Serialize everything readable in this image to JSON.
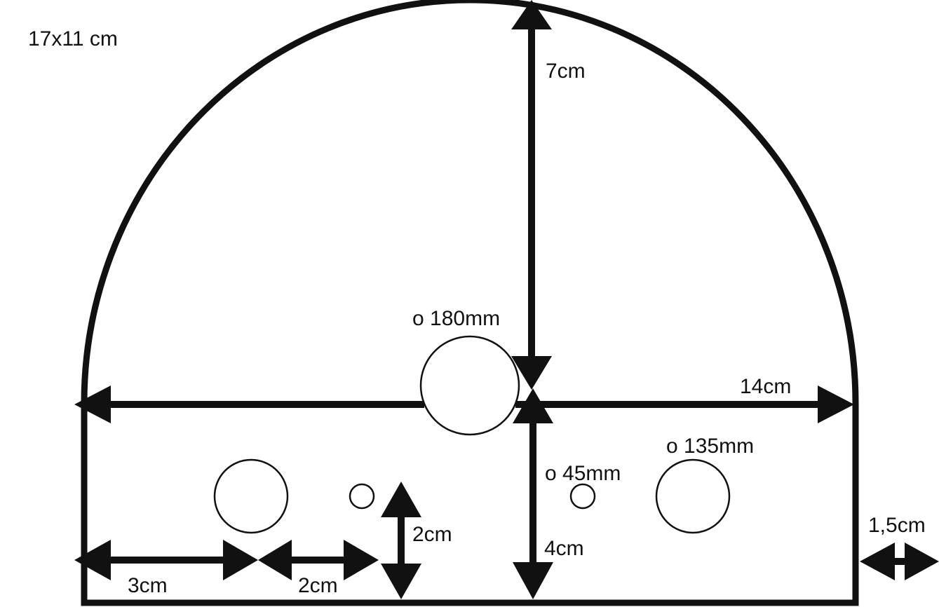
{
  "diagram": {
    "size_label": "17x11 cm",
    "height_top_label": "7cm",
    "height_bottom_label": "4cm",
    "width_label": "14cm",
    "margin_right_label": "1,5cm",
    "left_hole_offset_label": "3cm",
    "hole_spacing_label": "2cm",
    "hole_height_label": "2cm",
    "hole_large_center_label": "o 180mm",
    "hole_medium_right_label": "o 135mm",
    "hole_small_label": "o 45mm",
    "line_color": "#111111",
    "background_color": "#ffffff"
  }
}
